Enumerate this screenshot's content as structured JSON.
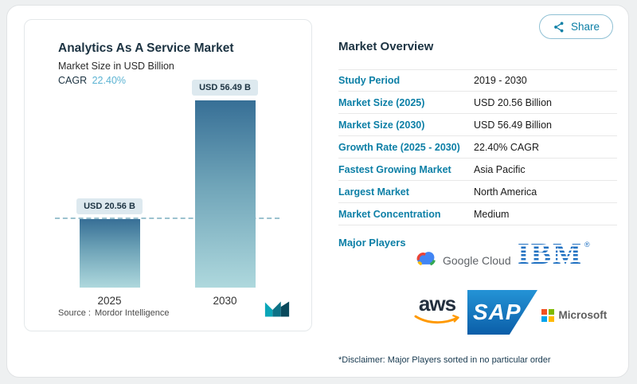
{
  "colors": {
    "accent_teal": "#0C7FA6",
    "cagr_value_blue": "#5CB3D3",
    "bar_gradient_top": "#376F96",
    "bar_gradient_bottom": "#AED8DD",
    "ibm_blue": "#1F70C1",
    "aws_orange": "#FF9900",
    "sap_blue": "#0B5EA8",
    "microsoft_red": "#F25022",
    "microsoft_green": "#7FBA00",
    "microsoft_blue": "#00A4EF",
    "microsoft_yellow": "#FFB900"
  },
  "share_button": {
    "label": "Share"
  },
  "chart_card": {
    "title": "Analytics As A Service Market",
    "subtitle": "Market Size in USD Billion",
    "cagr_label": "CAGR",
    "cagr_value": "22.40%",
    "source_label": "Source :",
    "source_value": "Mordor Intelligence"
  },
  "chart_data": {
    "type": "bar",
    "title": "Analytics As A Service Market",
    "ylabel": "Market Size in USD Billion",
    "categories": [
      "2025",
      "2030"
    ],
    "values": [
      20.56,
      56.49
    ],
    "bar_labels": [
      "USD 20.56 B",
      "USD 56.49 B"
    ],
    "unit": "USD Billion",
    "ylim": [
      0,
      60
    ],
    "threshold_line_at": 20.56,
    "legend": "off",
    "grid": "off"
  },
  "market_overview": {
    "title": "Market Overview",
    "rows": [
      {
        "label": "Study Period",
        "value": "2019 - 2030"
      },
      {
        "label": "Market Size (2025)",
        "value": "USD 20.56 Billion"
      },
      {
        "label": "Market Size (2030)",
        "value": "USD 56.49 Billion"
      },
      {
        "label": "Growth Rate (2025 - 2030)",
        "value": "22.40% CAGR"
      },
      {
        "label": "Fastest Growing Market",
        "value": "Asia Pacific"
      },
      {
        "label": "Largest Market",
        "value": "North America"
      },
      {
        "label": "Market Concentration",
        "value": "Medium"
      }
    ],
    "major_players_label": "Major Players",
    "players": [
      {
        "name": "Google Cloud"
      },
      {
        "name": "IBM",
        "reg_mark": "®"
      },
      {
        "name": "aws"
      },
      {
        "name": "SAP"
      },
      {
        "name": "Microsoft"
      }
    ],
    "disclaimer": "*Disclaimer: Major Players sorted in no particular order"
  }
}
